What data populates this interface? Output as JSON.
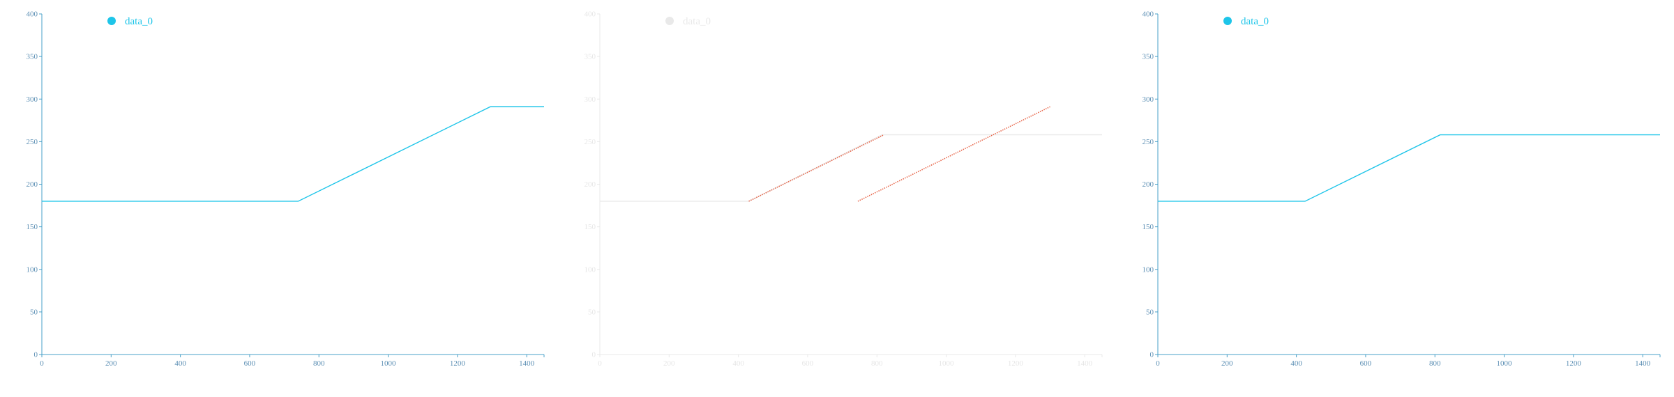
{
  "colors": {
    "series": "#1ec5e9",
    "axis": "#4aa0c8",
    "tick_text": "#5c8fb4",
    "diff_line": "#e8664a",
    "faded": "#e9e9e9",
    "faded_text": "#e6e6e6"
  },
  "chart_data": [
    {
      "type": "line",
      "series": [
        {
          "name": "data_0",
          "x": [
            0,
            740,
            1295,
            1450
          ],
          "y": [
            180,
            180,
            291,
            291
          ]
        }
      ],
      "xlim": [
        0,
        1450
      ],
      "ylim": [
        0,
        400
      ],
      "xticks": [
        "0",
        "200",
        "400",
        "600",
        "800",
        "1000",
        "1200",
        "1400"
      ],
      "yticks": [
        "0",
        "50",
        "100",
        "150",
        "200",
        "250",
        "300",
        "350",
        "400"
      ],
      "legend": "top-left"
    },
    {
      "type": "line",
      "series": [
        {
          "name": "data_0",
          "x": [
            0,
            430,
            815,
            1450
          ],
          "y": [
            180,
            180,
            258,
            258
          ]
        }
      ],
      "highlight_segments": [
        {
          "x": [
            430,
            820
          ],
          "y": [
            180,
            258
          ]
        },
        {
          "x": [
            745,
            1300
          ],
          "y": [
            180,
            291
          ]
        }
      ],
      "xlim": [
        0,
        1450
      ],
      "ylim": [
        0,
        400
      ],
      "xticks": [
        "0",
        "200",
        "400",
        "600",
        "800",
        "1000",
        "1200",
        "1400"
      ],
      "yticks": [
        "0",
        "50",
        "100",
        "150",
        "200",
        "250",
        "300",
        "350",
        "400"
      ],
      "legend": "top-left"
    },
    {
      "type": "line",
      "series": [
        {
          "name": "data_0",
          "x": [
            0,
            425,
            815,
            1450
          ],
          "y": [
            180,
            180,
            258,
            258
          ]
        }
      ],
      "xlim": [
        0,
        1450
      ],
      "ylim": [
        0,
        400
      ],
      "xticks": [
        "0",
        "200",
        "400",
        "600",
        "800",
        "1000",
        "1200",
        "1400"
      ],
      "yticks": [
        "0",
        "50",
        "100",
        "150",
        "200",
        "250",
        "300",
        "350",
        "400"
      ],
      "legend": "top-left"
    }
  ]
}
